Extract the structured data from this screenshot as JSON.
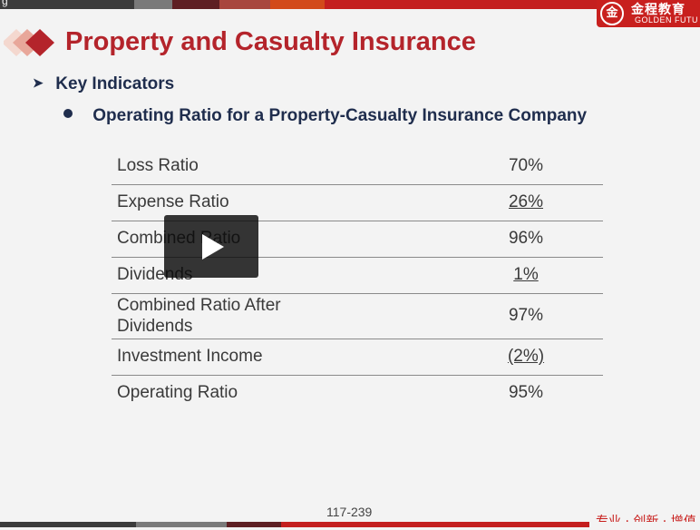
{
  "header": {
    "partial_text": "g",
    "logo": {
      "seal_char": "金",
      "cn_text": "金程教育",
      "en_text": "GOLDEN FUTU"
    }
  },
  "slide": {
    "title": "Property and Casualty Insurance",
    "bullet_level1": "Key Indicators",
    "bullet_level2": "Operating Ratio for a Property-Casualty Insurance Company",
    "table": [
      {
        "label": "Loss Ratio",
        "value": "70%",
        "underline": false
      },
      {
        "label": "Expense Ratio",
        "value": "26%",
        "underline": true
      },
      {
        "label": "Combined Ratio",
        "value": "96%",
        "underline": false
      },
      {
        "label": "Dividends",
        "value": "1%",
        "underline": true
      },
      {
        "label": "Combined Ratio After Dividends",
        "value": "97%",
        "underline": false
      },
      {
        "label": "Investment Income",
        "value": "(2%)",
        "underline": true
      },
      {
        "label": "Operating Ratio",
        "value": "95%",
        "underline": false
      }
    ],
    "page_number": "117-239",
    "slogan": "专业 · 创新 · 增值"
  },
  "colors": {
    "title": "#b4242b",
    "brand_red": "#c8201e",
    "text_dark": "#1f2d4d"
  },
  "icons": {
    "play": "play-icon",
    "diamonds": "diamond-decoration-icon"
  }
}
